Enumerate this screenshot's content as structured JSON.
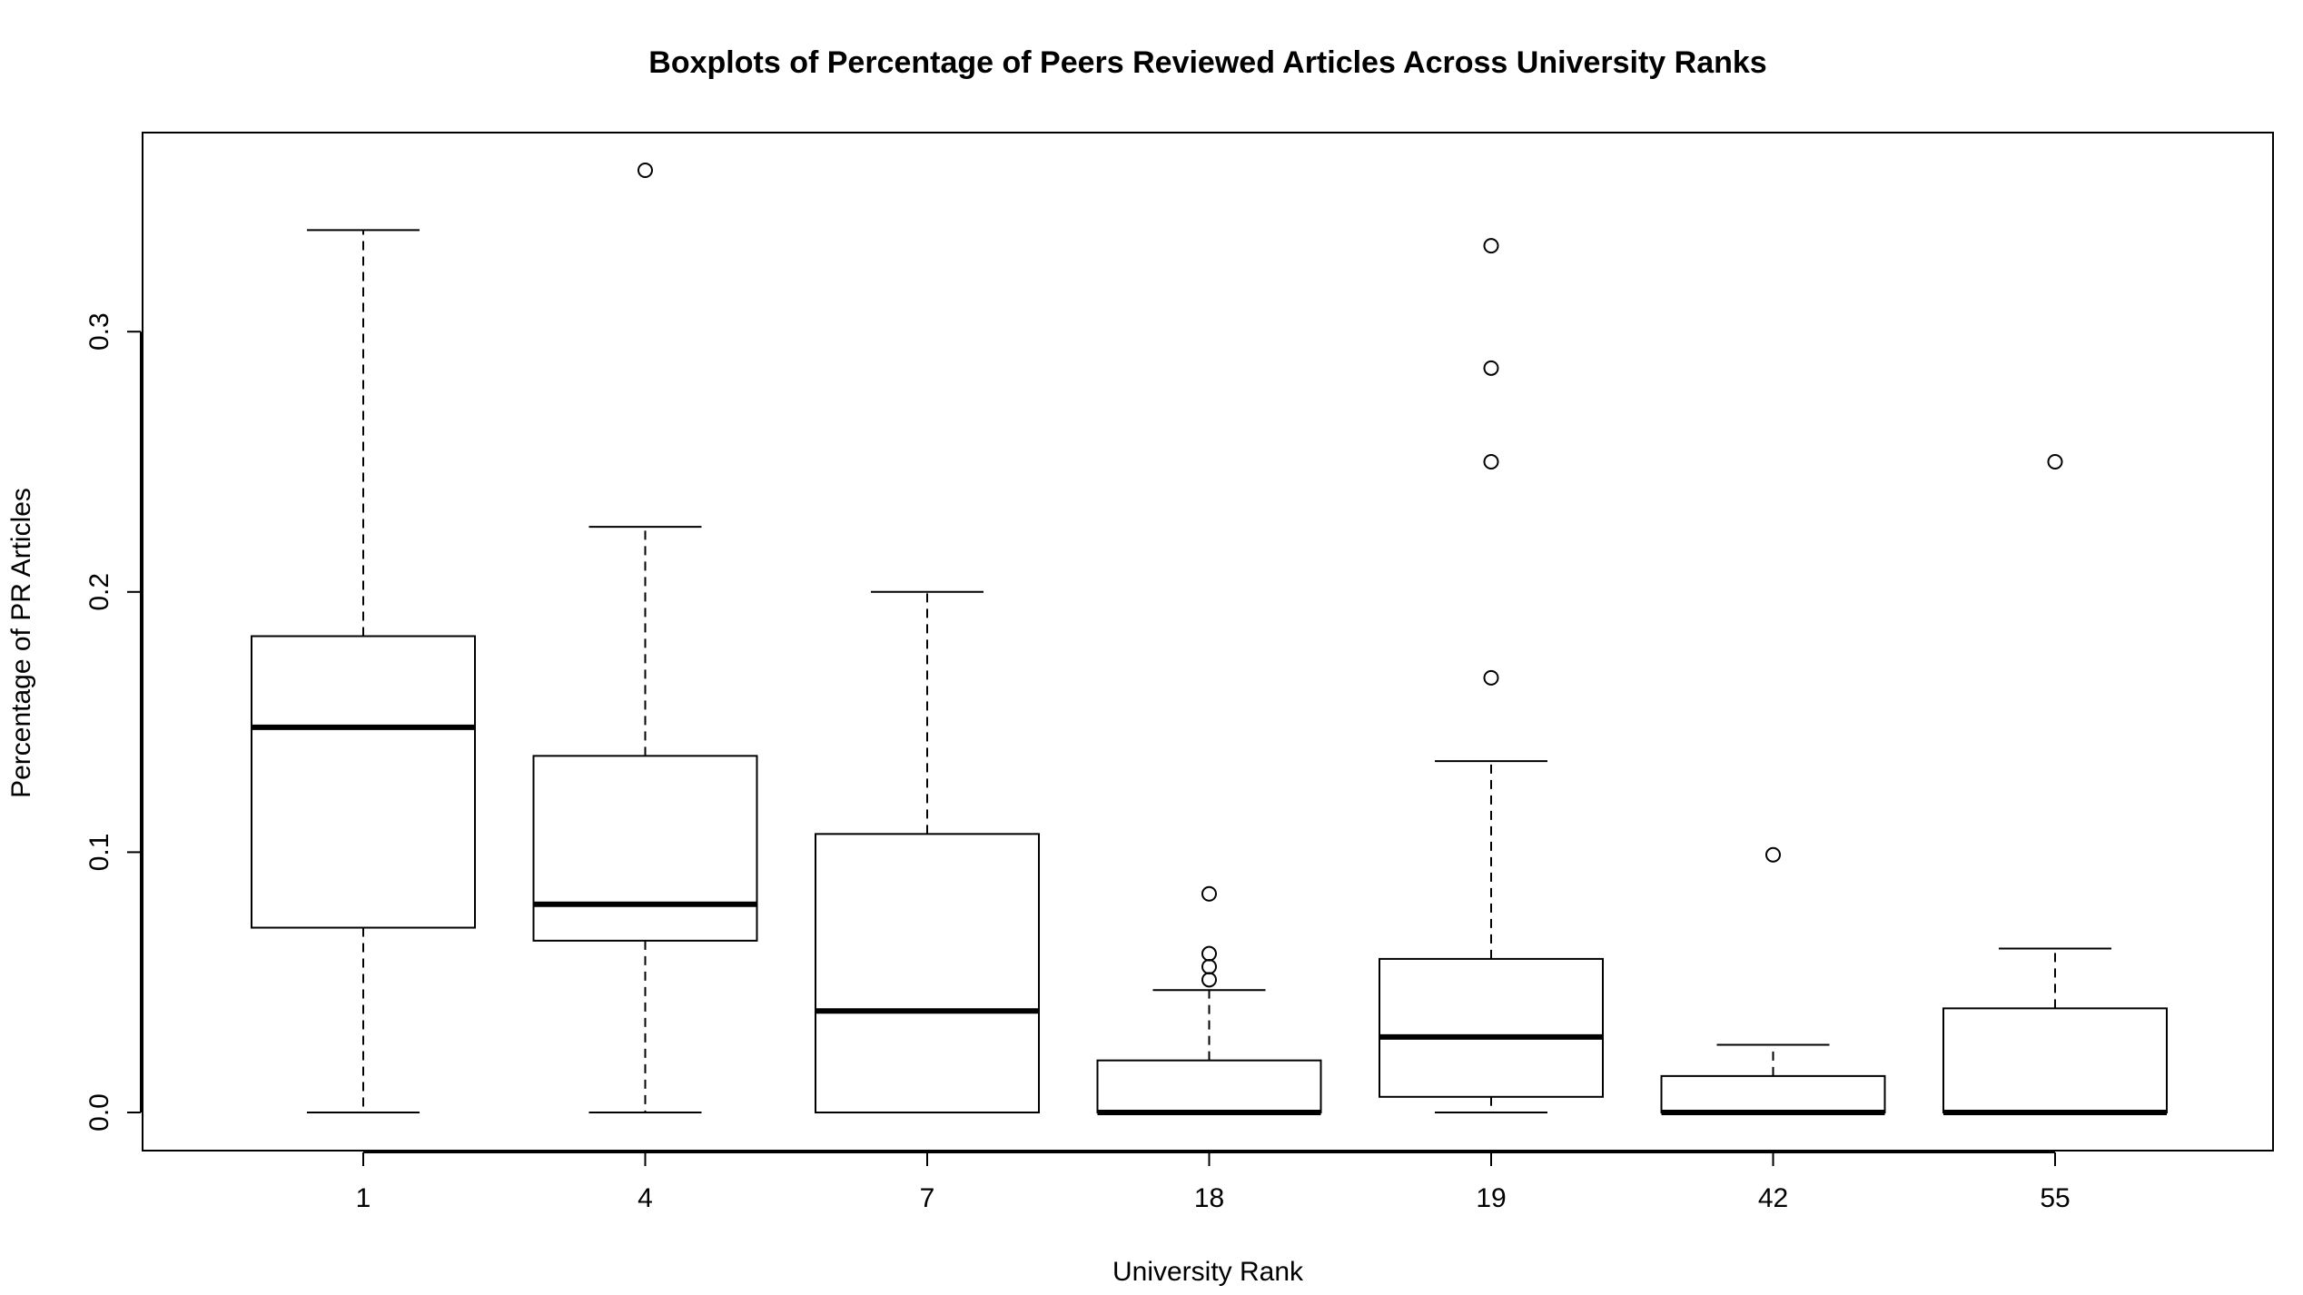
{
  "chart_data": {
    "type": "boxplot",
    "title": "Boxplots of Percentage of Peers Reviewed Articles Across University Ranks",
    "xlabel": "University Rank",
    "ylabel": "Percentage of PR Articles",
    "ylim": [
      -0.015,
      0.375
    ],
    "y_ticks": [
      0.0,
      0.1,
      0.2,
      0.3
    ],
    "y_tick_labels": [
      "0.0",
      "0.1",
      "0.2",
      "0.3"
    ],
    "grid": false,
    "legend": "none",
    "categories": [
      "1",
      "4",
      "7",
      "18",
      "19",
      "42",
      "55"
    ],
    "boxes": [
      {
        "category": "1",
        "whisker_low": 0.0,
        "q1": 0.071,
        "median": 0.148,
        "q3": 0.183,
        "whisker_high": 0.339,
        "outliers": []
      },
      {
        "category": "4",
        "whisker_low": 0.0,
        "q1": 0.066,
        "median": 0.08,
        "q3": 0.137,
        "whisker_high": 0.225,
        "outliers": [
          0.362
        ]
      },
      {
        "category": "7",
        "whisker_low": 0.0,
        "q1": 0.0,
        "median": 0.039,
        "q3": 0.107,
        "whisker_high": 0.2,
        "outliers": []
      },
      {
        "category": "18",
        "whisker_low": 0.0,
        "q1": 0.0,
        "median": 0.0,
        "q3": 0.02,
        "whisker_high": 0.047,
        "outliers": [
          0.051,
          0.056,
          0.061,
          0.084
        ]
      },
      {
        "category": "19",
        "whisker_low": 0.0,
        "q1": 0.006,
        "median": 0.029,
        "q3": 0.059,
        "whisker_high": 0.135,
        "outliers": [
          0.167,
          0.25,
          0.286,
          0.333
        ]
      },
      {
        "category": "42",
        "whisker_low": 0.0,
        "q1": 0.0,
        "median": 0.0,
        "q3": 0.014,
        "whisker_high": 0.026,
        "outliers": [
          0.099
        ]
      },
      {
        "category": "55",
        "whisker_low": 0.0,
        "q1": 0.0,
        "median": 0.0,
        "q3": 0.04,
        "whisker_high": 0.063,
        "outliers": [
          0.25
        ]
      }
    ]
  }
}
